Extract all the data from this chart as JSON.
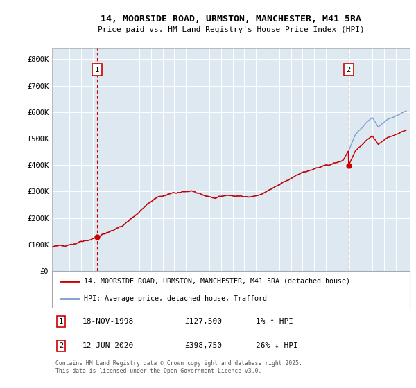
{
  "title1": "14, MOORSIDE ROAD, URMSTON, MANCHESTER, M41 5RA",
  "title2": "Price paid vs. HM Land Registry's House Price Index (HPI)",
  "ylabel_ticks": [
    "£0",
    "£100K",
    "£200K",
    "£300K",
    "£400K",
    "£500K",
    "£600K",
    "£700K",
    "£800K"
  ],
  "ytick_values": [
    0,
    100000,
    200000,
    300000,
    400000,
    500000,
    600000,
    700000,
    800000
  ],
  "ylim": [
    0,
    840000
  ],
  "xlim_start": 1995.0,
  "xlim_end": 2025.7,
  "sale1_date": 1998.88,
  "sale1_price": 127500,
  "sale1_label": "1",
  "sale2_date": 2020.45,
  "sale2_price": 398750,
  "sale2_label": "2",
  "hpi_color": "#7799cc",
  "price_color": "#cc0000",
  "vline_color": "#cc0000",
  "bg_color": "#dde8f0",
  "grid_color": "#ffffff",
  "legend1": "14, MOORSIDE ROAD, URMSTON, MANCHESTER, M41 5RA (detached house)",
  "legend2": "HPI: Average price, detached house, Trafford",
  "note1_label": "1",
  "note1_date": "18-NOV-1998",
  "note1_price": "£127,500",
  "note1_pct": "1% ↑ HPI",
  "note2_label": "2",
  "note2_date": "12-JUN-2020",
  "note2_price": "£398,750",
  "note2_pct": "26% ↓ HPI",
  "footer": "Contains HM Land Registry data © Crown copyright and database right 2025.\nThis data is licensed under the Open Government Licence v3.0."
}
